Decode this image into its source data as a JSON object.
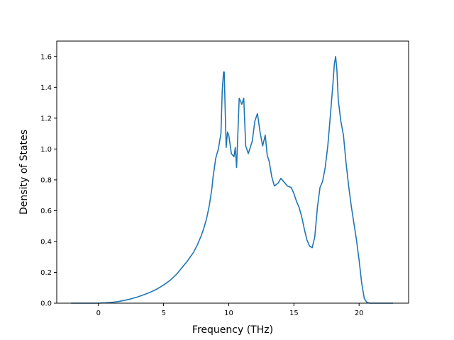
{
  "chart_data": {
    "type": "line",
    "title": "",
    "xlabel": "Frequency (THz)",
    "ylabel": "Density of States",
    "xlim": [
      -3.2,
      23.8
    ],
    "ylim": [
      0.0,
      1.7
    ],
    "xticks": [
      0,
      5,
      10,
      15,
      20
    ],
    "yticks": [
      0.0,
      0.2,
      0.4,
      0.6,
      0.8,
      1.0,
      1.2,
      1.4,
      1.6
    ],
    "xtick_labels": [
      "0",
      "5",
      "10",
      "15",
      "20"
    ],
    "ytick_labels": [
      "0.0",
      "0.2",
      "0.4",
      "0.6",
      "0.8",
      "1.0",
      "1.2",
      "1.4",
      "1.6"
    ],
    "grid": false,
    "legend": null,
    "colors": {
      "line": "#1f77b4"
    },
    "series": [
      {
        "x": [
          -2.1,
          -1,
          0,
          0.5,
          1,
          1.5,
          2,
          2.5,
          3,
          3.5,
          4,
          4.5,
          5,
          5.5,
          6,
          6.5,
          6.8,
          7,
          7.3,
          7.6,
          7.9,
          8.1,
          8.3,
          8.5,
          8.7,
          8.8,
          9.0,
          9.2,
          9.3,
          9.4,
          9.5,
          9.6,
          9.65,
          9.8,
          9.9,
          10.0,
          10.2,
          10.4,
          10.5,
          10.6,
          10.8,
          11.0,
          11.15,
          11.3,
          11.5,
          11.8,
          12.0,
          12.2,
          12.4,
          12.6,
          12.8,
          12.95,
          13.1,
          13.3,
          13.5,
          13.8,
          14.0,
          14.2,
          14.5,
          14.8,
          15.0,
          15.2,
          15.4,
          15.6,
          15.8,
          16.0,
          16.2,
          16.4,
          16.6,
          16.8,
          17.0,
          17.2,
          17.4,
          17.6,
          17.8,
          18.0,
          18.1,
          18.2,
          18.3,
          18.4,
          18.6,
          18.8,
          19.0,
          19.2,
          19.4,
          19.6,
          19.8,
          20.0,
          20.2,
          20.4,
          20.6,
          20.8,
          21.0,
          22.6
        ],
        "y": [
          0.0,
          0.0,
          0.0,
          0.002,
          0.005,
          0.01,
          0.018,
          0.028,
          0.04,
          0.055,
          0.072,
          0.092,
          0.118,
          0.148,
          0.188,
          0.24,
          0.27,
          0.295,
          0.33,
          0.38,
          0.44,
          0.49,
          0.55,
          0.63,
          0.74,
          0.82,
          0.94,
          1.0,
          1.05,
          1.1,
          1.38,
          1.5,
          1.5,
          1.01,
          1.11,
          1.09,
          0.97,
          0.95,
          1.01,
          0.88,
          1.33,
          1.29,
          1.33,
          1.02,
          0.97,
          1.05,
          1.18,
          1.23,
          1.11,
          1.02,
          1.09,
          0.96,
          0.92,
          0.82,
          0.76,
          0.78,
          0.81,
          0.79,
          0.76,
          0.75,
          0.71,
          0.66,
          0.62,
          0.56,
          0.48,
          0.41,
          0.37,
          0.36,
          0.43,
          0.62,
          0.75,
          0.79,
          0.88,
          1.02,
          1.22,
          1.43,
          1.55,
          1.6,
          1.51,
          1.32,
          1.18,
          1.09,
          0.91,
          0.76,
          0.63,
          0.52,
          0.41,
          0.28,
          0.13,
          0.03,
          0.005,
          0.0,
          0.0,
          0.0
        ]
      }
    ]
  }
}
